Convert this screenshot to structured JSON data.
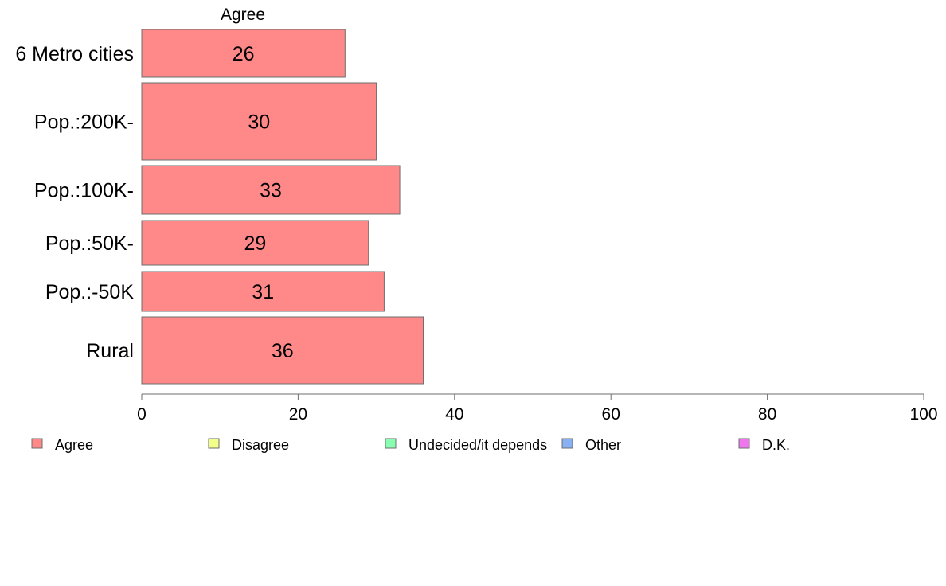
{
  "chart_data": {
    "type": "bar",
    "orientation": "horizontal",
    "panel_title": "Agree",
    "categories": [
      "6 Metro cities",
      "Pop.:200K-",
      "Pop.:100K-",
      "Pop.:50K-",
      "Pop.:-50K",
      "Rural"
    ],
    "series": [
      {
        "name": "Agree",
        "values": [
          26,
          30,
          33,
          29,
          31,
          36
        ]
      }
    ],
    "xlim": [
      0,
      100
    ],
    "xticks": [
      0,
      20,
      40,
      60,
      80,
      100
    ],
    "grid": false,
    "legend_position": "bottom",
    "legend": [
      {
        "label": "Agree",
        "color": "#ff8888"
      },
      {
        "label": "Disagree",
        "color": "#f2ff88"
      },
      {
        "label": "Undecided/it depends",
        "color": "#88ffb0"
      },
      {
        "label": "Other",
        "color": "#88b0f2"
      },
      {
        "label": "D.K.",
        "color": "#ee77ee"
      }
    ]
  }
}
